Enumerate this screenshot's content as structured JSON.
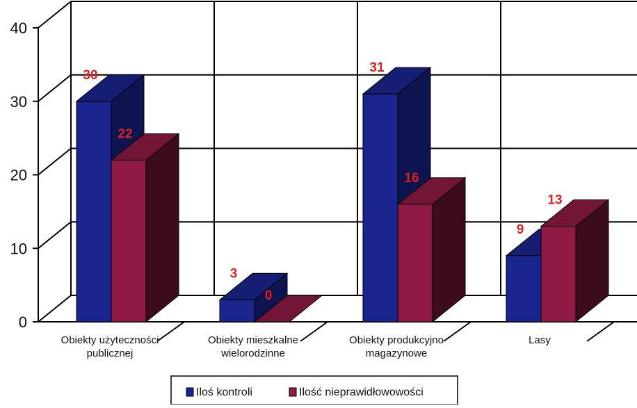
{
  "chart_data": {
    "type": "bar",
    "categories": [
      [
        "Obiekty użyteczności",
        "publicznej"
      ],
      [
        "Obiekty mieszkalne",
        "wielorodzinne"
      ],
      [
        "Obiekty produkcyjno",
        "magazynowe"
      ],
      [
        "Lasy"
      ]
    ],
    "series": [
      {
        "name": "Iloś kontroli",
        "values": [
          30,
          3,
          31,
          9
        ],
        "color": "#1a2590"
      },
      {
        "name": "Ilość nieprawidłowowości",
        "values": [
          22,
          0,
          16,
          13
        ],
        "color": "#8f1a45"
      }
    ],
    "yticks": [
      0,
      10,
      20,
      30,
      40
    ],
    "ylim": [
      0,
      40
    ],
    "grid": true,
    "three_d": true,
    "legend_position": "bottom",
    "data_label_color": "#e02020"
  }
}
